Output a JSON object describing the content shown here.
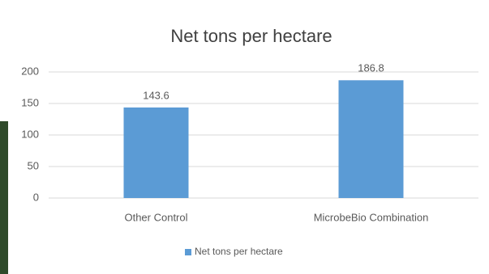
{
  "chart_data": {
    "type": "bar",
    "title": "Net tons per hectare",
    "categories": [
      "Other Control",
      "MicrobeBio Combination"
    ],
    "series": [
      {
        "name": "Net tons per hectare",
        "color": "#5b9bd5",
        "values": [
          143.6,
          186.8
        ]
      }
    ],
    "ylim": [
      0,
      200
    ],
    "yticks": [
      0,
      50,
      100,
      150,
      200
    ],
    "grid": true,
    "legend": "bottom"
  }
}
